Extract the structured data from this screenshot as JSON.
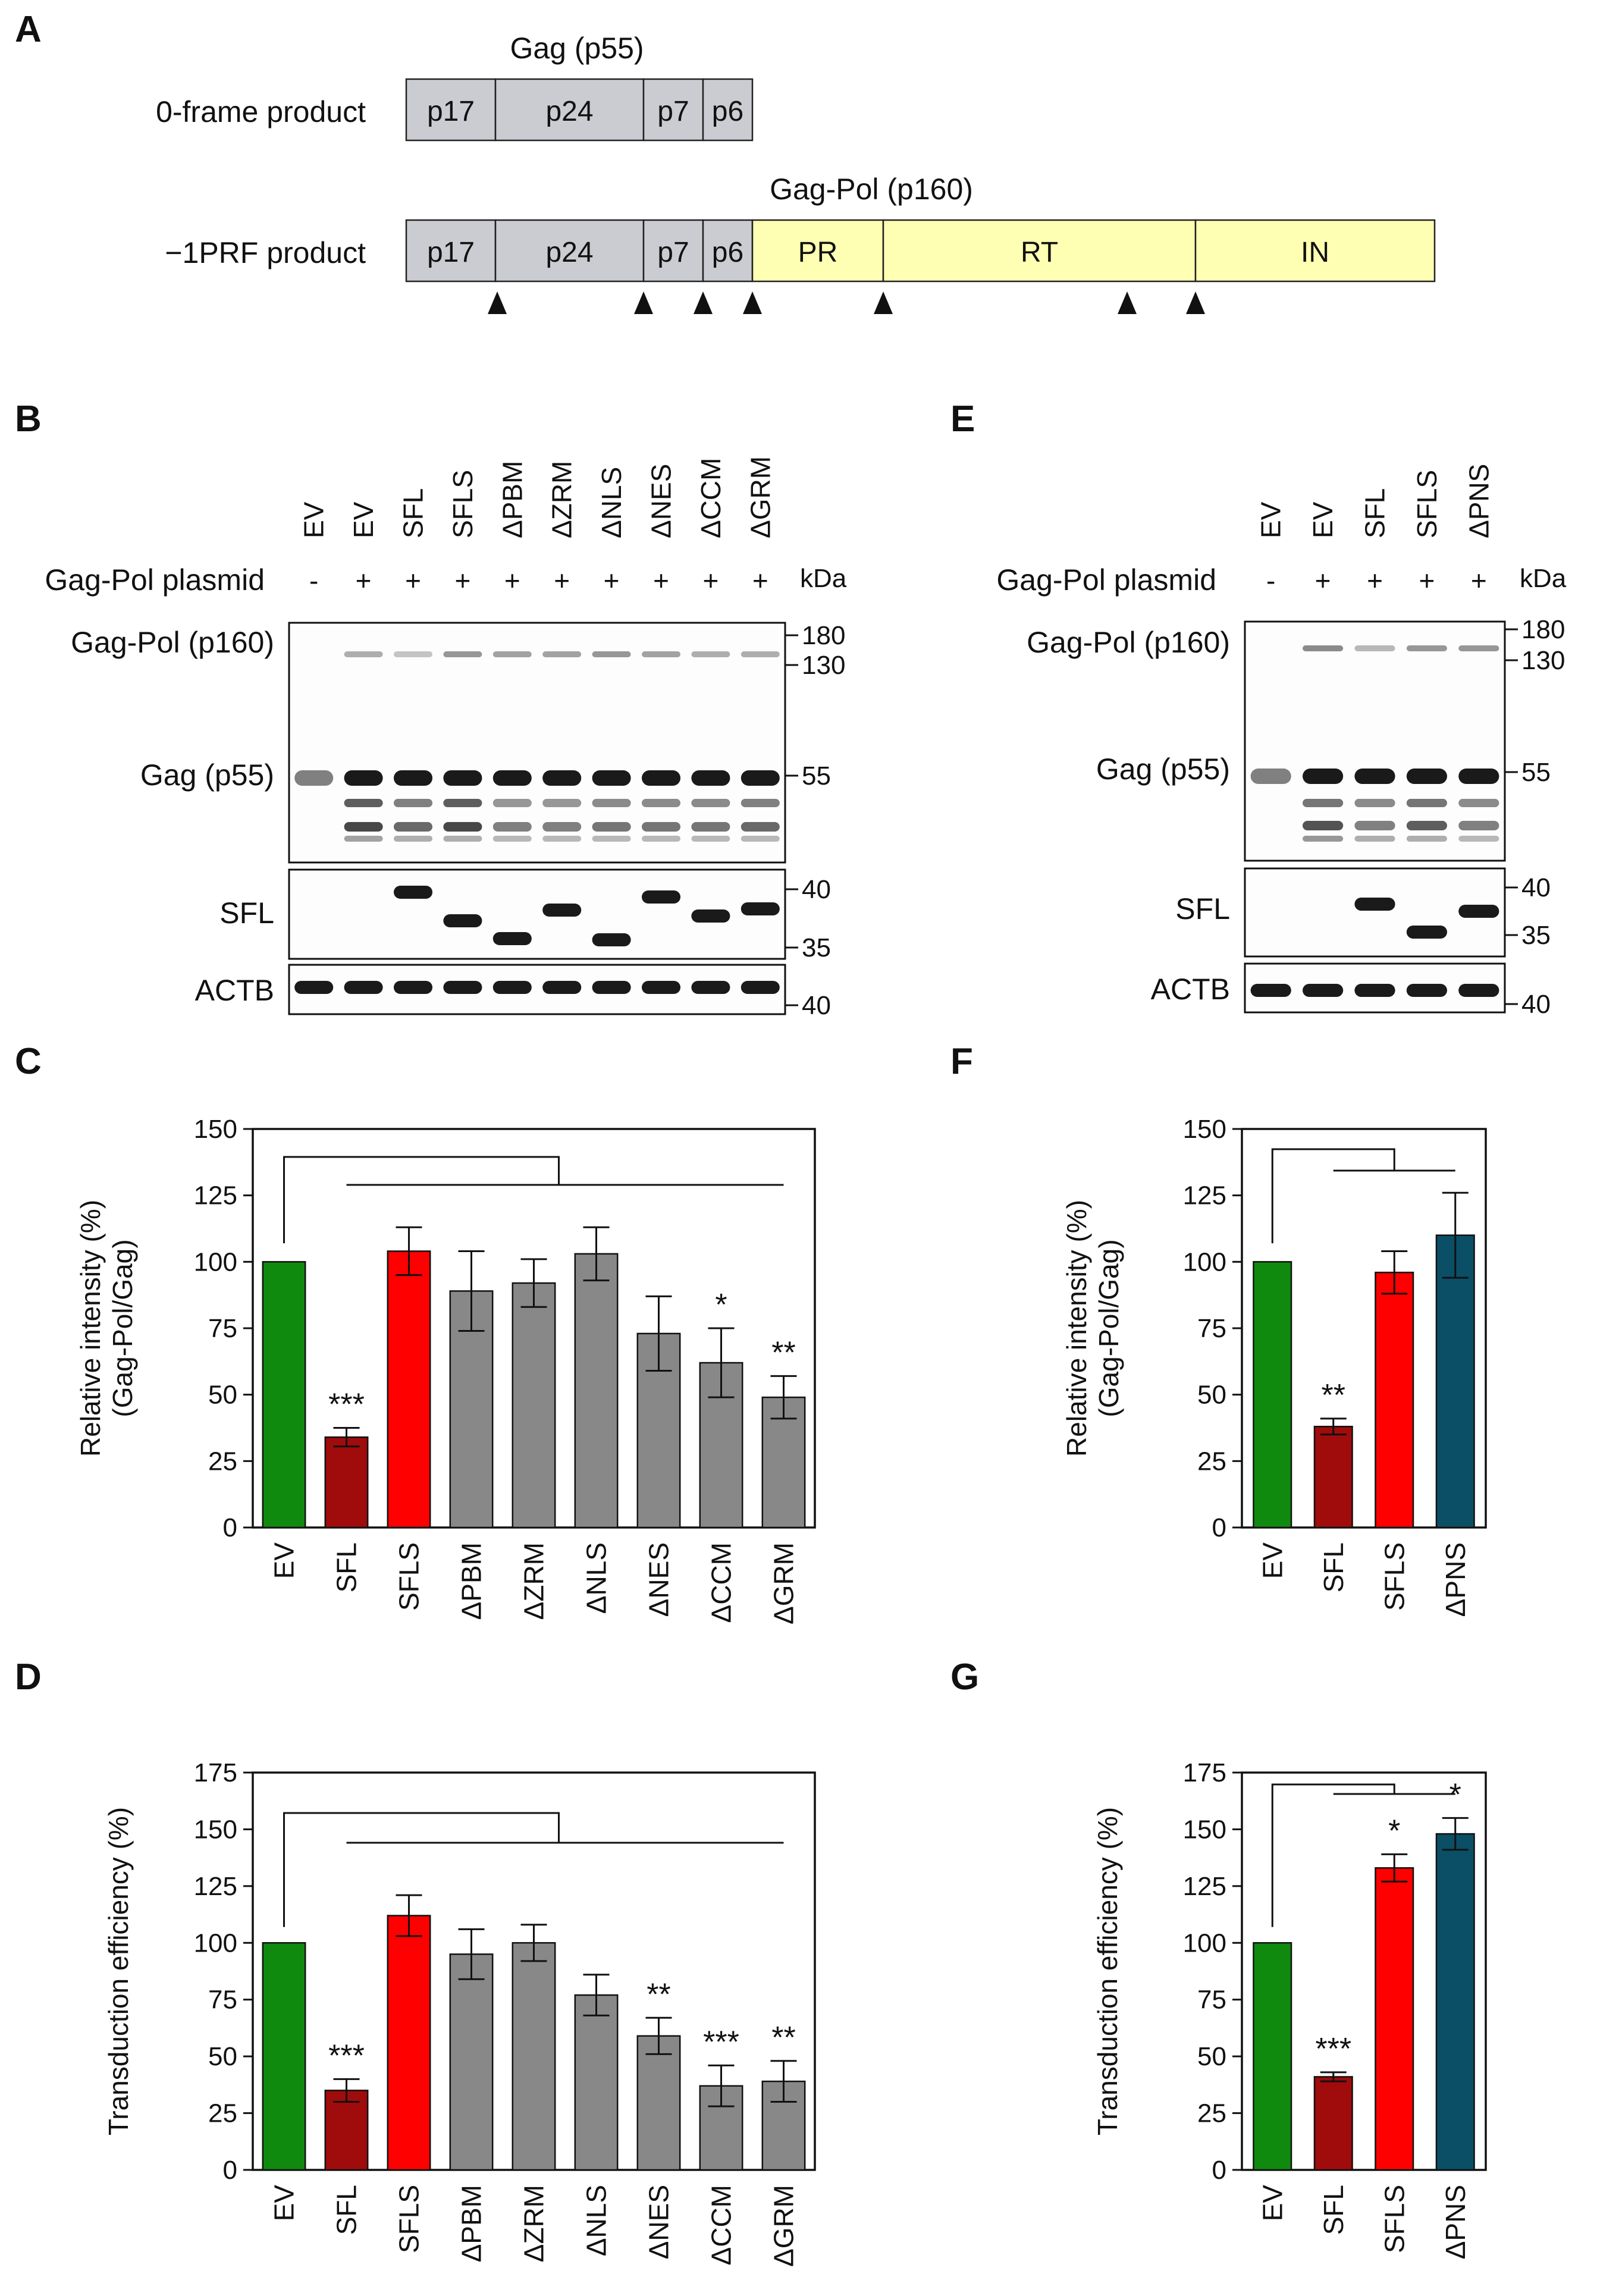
{
  "panels": {
    "a": "A",
    "b": "B",
    "c": "C",
    "d": "D",
    "e": "E",
    "f": "F",
    "g": "G"
  },
  "schematic": {
    "gag_title": "Gag (p55)",
    "gagpol_title": "Gag-Pol (p160)",
    "row1_label": "0-frame product",
    "row2_label": "−1PRF product",
    "row1_domains": [
      "p17",
      "p24",
      "p7",
      "p6"
    ],
    "row2_domains": [
      "p17",
      "p24",
      "p7",
      "p6",
      "PR",
      "RT",
      "IN"
    ],
    "gag_color": "#cbccd1",
    "pol_color": "#ffffb3"
  },
  "blot_b": {
    "lanes": [
      "EV",
      "EV",
      "SFL",
      "SFLS",
      "ΔPBM",
      "ΔZRM",
      "ΔNLS",
      "ΔNES",
      "ΔCCM",
      "ΔGRM"
    ],
    "plasmid_label": "Gag-Pol plasmid",
    "plasmid_signs": [
      "-",
      "+",
      "+",
      "+",
      "+",
      "+",
      "+",
      "+",
      "+",
      "+"
    ],
    "kda_label": "kDa",
    "row_labels": [
      "Gag-Pol (p160)",
      "Gag (p55)",
      "SFL",
      "ACTB"
    ],
    "markers": [
      "180",
      "130",
      "55",
      "40",
      "35",
      "40"
    ]
  },
  "blot_e": {
    "lanes": [
      "EV",
      "EV",
      "SFL",
      "SFLS",
      "ΔPNS"
    ],
    "plasmid_label": "Gag-Pol plasmid",
    "plasmid_signs": [
      "-",
      "+",
      "+",
      "+",
      "+"
    ],
    "kda_label": "kDa",
    "row_labels": [
      "Gag-Pol (p160)",
      "Gag (p55)",
      "SFL",
      "ACTB"
    ],
    "markers": [
      "180",
      "130",
      "55",
      "40",
      "35",
      "40"
    ]
  },
  "chart_data": [
    {
      "panel": "C",
      "type": "bar",
      "ylabel": [
        "Relative intensity (%)",
        "(Gag-Pol/Gag)"
      ],
      "ylim": [
        0,
        150
      ],
      "yticks": [
        "0",
        "25",
        "50",
        "75",
        "100",
        "125",
        "150"
      ],
      "categories": [
        "EV",
        "SFL",
        "SFLS",
        "ΔPBM",
        "ΔZRM",
        "ΔNLS",
        "ΔNES",
        "ΔCCM",
        "ΔGRM"
      ],
      "values": [
        100,
        34,
        104,
        89,
        92,
        103,
        73,
        62,
        49
      ],
      "errors": [
        0,
        3.5,
        9,
        15,
        9,
        10,
        14,
        13,
        8
      ],
      "significance": [
        "",
        "***",
        "",
        "",
        "",
        "",
        "",
        "*",
        "**"
      ],
      "colors": [
        "#0f8a0f",
        "#a00b0b",
        "#fe0000",
        "#888888",
        "#888888",
        "#888888",
        "#888888",
        "#888888",
        "#888888"
      ]
    },
    {
      "panel": "D",
      "type": "bar",
      "ylabel": [
        "Transduction efficiency (%)"
      ],
      "ylim": [
        0,
        175
      ],
      "yticks": [
        "0",
        "25",
        "50",
        "75",
        "100",
        "125",
        "150",
        "175"
      ],
      "categories": [
        "EV",
        "SFL",
        "SFLS",
        "ΔPBM",
        "ΔZRM",
        "ΔNLS",
        "ΔNES",
        "ΔCCM",
        "ΔGRM"
      ],
      "values": [
        100,
        35,
        112,
        95,
        100,
        77,
        59,
        37,
        39
      ],
      "errors": [
        0,
        5,
        9,
        11,
        8,
        9,
        8,
        9,
        9
      ],
      "significance": [
        "",
        "***",
        "",
        "",
        "",
        "",
        "**",
        "***",
        "**"
      ],
      "colors": [
        "#0f8a0f",
        "#a00b0b",
        "#fe0000",
        "#888888",
        "#888888",
        "#888888",
        "#888888",
        "#888888",
        "#888888"
      ]
    },
    {
      "panel": "F",
      "type": "bar",
      "ylabel": [
        "Relative intensity (%)",
        "(Gag-Pol/Gag)"
      ],
      "ylim": [
        0,
        150
      ],
      "yticks": [
        "0",
        "25",
        "50",
        "75",
        "100",
        "125",
        "150"
      ],
      "categories": [
        "EV",
        "SFL",
        "SFLS",
        "ΔPNS"
      ],
      "values": [
        100,
        38,
        96,
        110
      ],
      "errors": [
        0,
        3,
        8,
        16
      ],
      "significance": [
        "",
        "**",
        "",
        ""
      ],
      "colors": [
        "#0f8a0f",
        "#a00b0b",
        "#fe0000",
        "#0a4f66"
      ]
    },
    {
      "panel": "G",
      "type": "bar",
      "ylabel": [
        "Transduction efficiency (%)"
      ],
      "ylim": [
        0,
        175
      ],
      "yticks": [
        "0",
        "25",
        "50",
        "75",
        "100",
        "125",
        "150",
        "175"
      ],
      "categories": [
        "EV",
        "SFL",
        "SFLS",
        "ΔPNS"
      ],
      "values": [
        100,
        41,
        133,
        148
      ],
      "errors": [
        0,
        2,
        6,
        7
      ],
      "significance": [
        "",
        "***",
        "*",
        "*"
      ],
      "colors": [
        "#0f8a0f",
        "#a00b0b",
        "#fe0000",
        "#0a4f66"
      ]
    }
  ]
}
